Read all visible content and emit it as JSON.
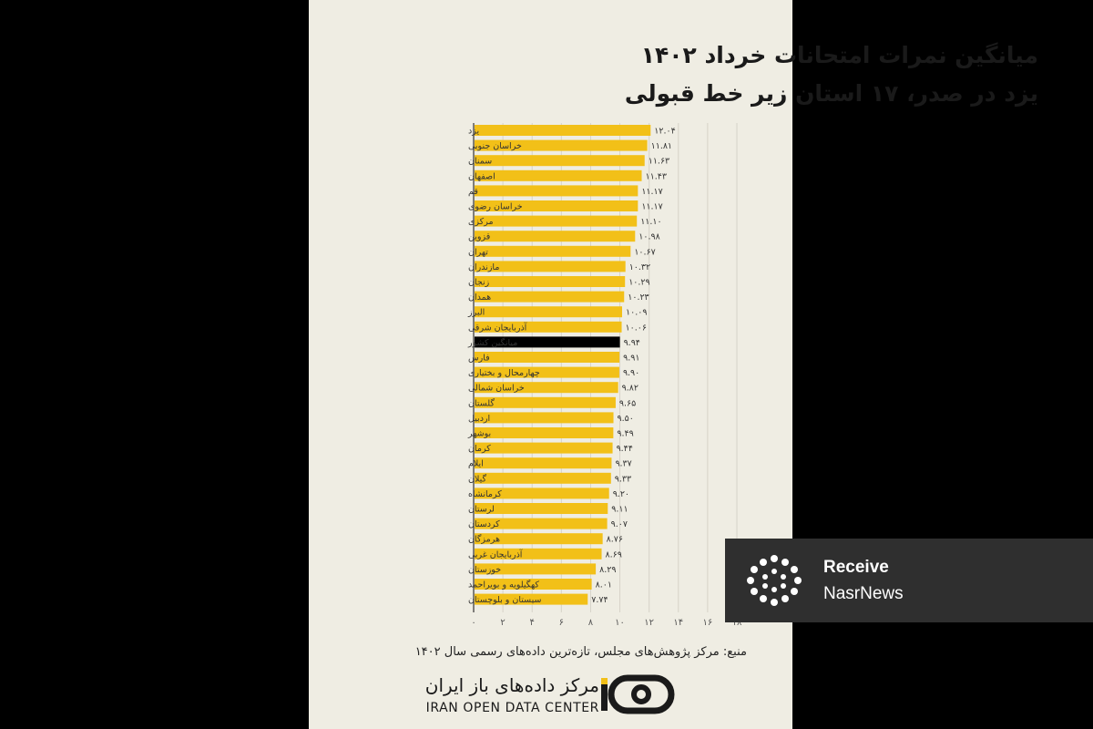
{
  "title_line1": "میانگین نمرات امتحانات خرداد ۱۴۰۲",
  "title_line2": "یزد در صدر، ۱۷ استان زیر خط قبولی",
  "chart_data": {
    "type": "bar",
    "orientation": "horizontal",
    "categories": [
      "یزد",
      "خراسان جنوبی",
      "سمنان",
      "اصفهان",
      "قم",
      "خراسان رضوی",
      "مرکزی",
      "قزوین",
      "تهران",
      "مازندران",
      "زنجان",
      "همدان",
      "البرز",
      "آذربایجان شرقی",
      "میانگین کشور",
      "فارس",
      "چهارمحال و بختیاری",
      "خراسان شمالی",
      "گلستان",
      "اردبیل",
      "بوشهر",
      "کرمان",
      "ایلام",
      "گیلان",
      "کرمانشاه",
      "لرستان",
      "کردستان",
      "هرمزگان",
      "آذربایجان غربی",
      "خوزستان",
      "کهگیلویه و بویراحمد",
      "سیستان و بلوچستان"
    ],
    "values": [
      12.04,
      11.81,
      11.63,
      11.43,
      11.17,
      11.17,
      11.1,
      10.98,
      10.67,
      10.32,
      10.29,
      10.23,
      10.09,
      10.06,
      9.94,
      9.91,
      9.9,
      9.82,
      9.65,
      9.5,
      9.49,
      9.44,
      9.37,
      9.33,
      9.2,
      9.11,
      9.07,
      8.76,
      8.69,
      8.29,
      8.01,
      7.74
    ],
    "value_labels": [
      "۱۲.۰۴",
      "۱۱.۸۱",
      "۱۱.۶۳",
      "۱۱.۴۳",
      "۱۱.۱۷",
      "۱۱.۱۷",
      "۱۱.۱۰",
      "۱۰.۹۸",
      "۱۰.۶۷",
      "۱۰.۳۲",
      "۱۰.۲۹",
      "۱۰.۲۳",
      "۱۰.۰۹",
      "۱۰.۰۶",
      "۹.۹۴",
      "۹.۹۱",
      "۹.۹۰",
      "۹.۸۲",
      "۹.۶۵",
      "۹.۵۰",
      "۹.۴۹",
      "۹.۴۴",
      "۹.۳۷",
      "۹.۳۳",
      "۹.۲۰",
      "۹.۱۱",
      "۹.۰۷",
      "۸.۷۶",
      "۸.۶۹",
      "۸.۲۹",
      "۸.۰۱",
      "۷.۷۴"
    ],
    "highlight_index": 14,
    "xlim": [
      0,
      18
    ],
    "xticks": [
      0,
      2,
      4,
      6,
      8,
      10,
      12,
      14,
      16,
      18
    ],
    "xtick_labels": [
      "۰",
      "۲",
      "۴",
      "۶",
      "۸",
      "۱۰",
      "۱۲",
      "۱۴",
      "۱۶",
      "۱۸"
    ],
    "grid": true,
    "colors": {
      "bar": "#f2c018",
      "highlight": "#000000",
      "grid": "#d6d3c8",
      "text": "#333333"
    }
  },
  "source": "منبع: مرکز پژوهش‌های مجلس، تازه‌ترین داده‌های رسمی سال ۱۴۰۲",
  "logo": {
    "name_fa": "مرکز داده‌های باز ایران",
    "name_en": "IRAN OPEN DATA CENTER",
    "icon": "iran-open-data-logo-icon"
  },
  "badge": {
    "line1": "Receive",
    "line2": "NasrNews",
    "icon": "nasrnews-logo-icon"
  }
}
